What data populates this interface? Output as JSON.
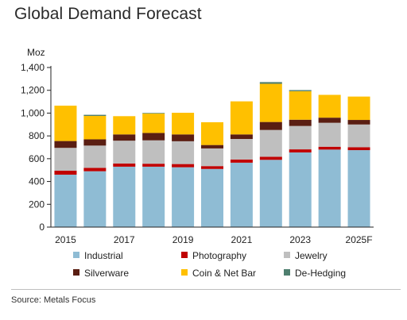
{
  "title": "Global Demand Forecast",
  "source": "Source: Metals Focus",
  "chart_data": {
    "type": "bar",
    "stacked": true,
    "ylabel": "Moz",
    "ylim": [
      0,
      1400
    ],
    "yticks": [
      0,
      200,
      400,
      600,
      800,
      1000,
      1200,
      1400
    ],
    "ytick_labels": [
      "0",
      "200",
      "400",
      "600",
      "800",
      "1,000",
      "1,200",
      "1,400"
    ],
    "categories": [
      "2015",
      "2016",
      "2017",
      "2018",
      "2019",
      "2020",
      "2021",
      "2022",
      "2023",
      "2024",
      "2025F"
    ],
    "xtick_labels": [
      "2015",
      "",
      "2017",
      "",
      "2019",
      "",
      "2021",
      "",
      "2023",
      "",
      "2025F"
    ],
    "grid": false,
    "legend_position": "bottom",
    "series": [
      {
        "name": "Industrial",
        "color": "#8fbcd4",
        "values": [
          460,
          490,
          530,
          530,
          525,
          510,
          565,
          590,
          655,
          680,
          675
        ]
      },
      {
        "name": "Photography",
        "color": "#c00000",
        "values": [
          35,
          30,
          28,
          26,
          28,
          25,
          28,
          27,
          27,
          25,
          25
        ]
      },
      {
        "name": "Jewelry",
        "color": "#bfbfbf",
        "values": [
          200,
          195,
          200,
          205,
          200,
          155,
          180,
          235,
          205,
          210,
          200
        ]
      },
      {
        "name": "Silverware",
        "color": "#5a1e12",
        "values": [
          60,
          55,
          55,
          65,
          60,
          30,
          40,
          70,
          55,
          45,
          40
        ]
      },
      {
        "name": "Coin & Net Bar",
        "color": "#ffc000",
        "values": [
          310,
          205,
          160,
          170,
          190,
          200,
          290,
          335,
          250,
          200,
          205
        ]
      },
      {
        "name": "De-Hedging",
        "color": "#4f7f6f",
        "values": [
          0,
          10,
          0,
          5,
          0,
          0,
          0,
          15,
          10,
          0,
          0
        ]
      }
    ]
  }
}
